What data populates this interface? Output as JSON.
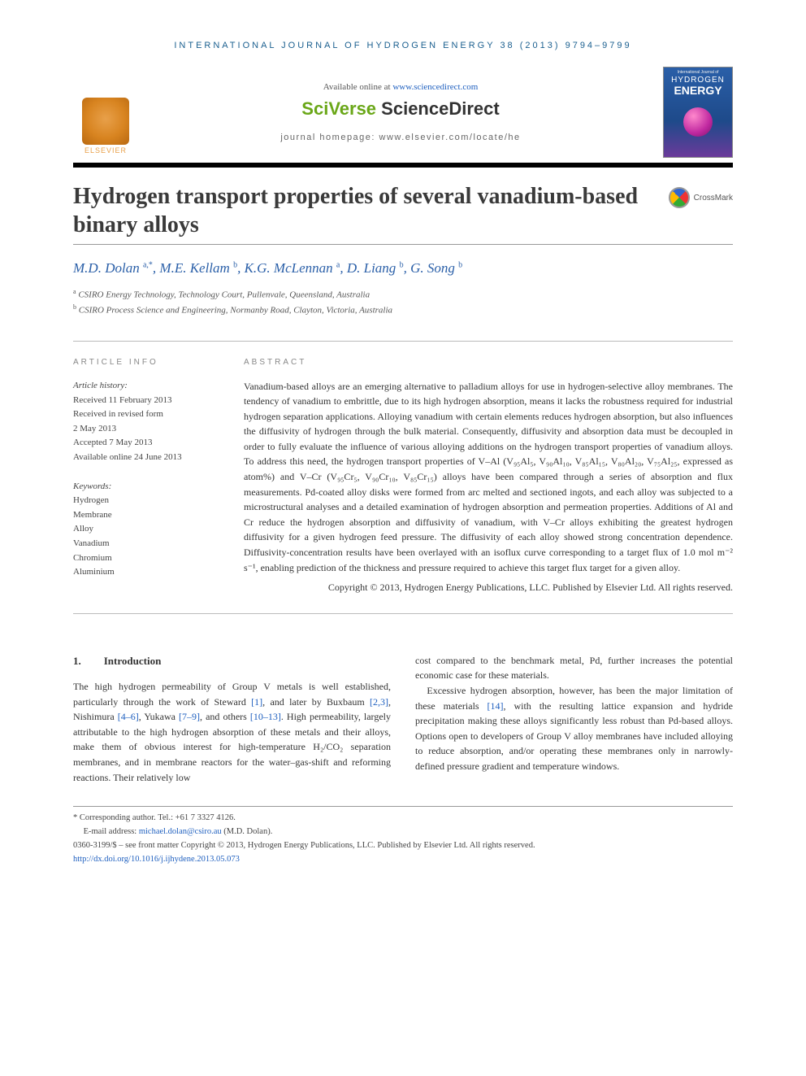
{
  "running_head": "INTERNATIONAL JOURNAL OF HYDROGEN ENERGY 38 (2013) 9794–9799",
  "masthead": {
    "elsevier": "ELSEVIER",
    "available_prefix": "Available online at ",
    "available_url": "www.sciencedirect.com",
    "sciverse_left": "SciVerse ",
    "sciverse_right": "ScienceDirect",
    "homepage": "journal homepage: www.elsevier.com/locate/he",
    "cover_top": "International Journal of",
    "cover_h": "HYDROGEN",
    "cover_e": "ENERGY"
  },
  "crossmark": "CrossMark",
  "title": "Hydrogen transport properties of several vanadium-based binary alloys",
  "authors_html": "M.D. Dolan <sup>a,*</sup>, M.E. Kellam <sup>b</sup>, K.G. McLennan <sup>a</sup>, D. Liang <sup>b</sup>, G. Song <sup>b</sup>",
  "affiliations": [
    {
      "sup": "a",
      "text": "CSIRO Energy Technology, Technology Court, Pullenvale, Queensland, Australia"
    },
    {
      "sup": "b",
      "text": "CSIRO Process Science and Engineering, Normanby Road, Clayton, Victoria, Australia"
    }
  ],
  "info": {
    "head": "ARTICLE INFO",
    "history_head": "Article history:",
    "history": [
      "Received 11 February 2013",
      "Received in revised form",
      "2 May 2013",
      "Accepted 7 May 2013",
      "Available online 24 June 2013"
    ],
    "keywords_head": "Keywords:",
    "keywords": [
      "Hydrogen",
      "Membrane",
      "Alloy",
      "Vanadium",
      "Chromium",
      "Aluminium"
    ]
  },
  "abstract": {
    "head": "ABSTRACT",
    "body": "Vanadium-based alloys are an emerging alternative to palladium alloys for use in hydrogen-selective alloy membranes. The tendency of vanadium to embrittle, due to its high hydrogen absorption, means it lacks the robustness required for industrial hydrogen separation applications. Alloying vanadium with certain elements reduces hydrogen absorption, but also influences the diffusivity of hydrogen through the bulk material. Consequently, diffusivity and absorption data must be decoupled in order to fully evaluate the influence of various alloying additions on the hydrogen transport properties of vanadium alloys. To address this need, the hydrogen transport properties of V–Al (V₉₅Al₅, V₉₀Al₁₀, V₈₅Al₁₅, V₈₀Al₂₀, V₇₅Al₂₅, expressed as atom%) and V–Cr (V₉₅Cr₅, V₉₀Cr₁₀, V₈₅Cr₁₅) alloys have been compared through a series of absorption and flux measurements. Pd-coated alloy disks were formed from arc melted and sectioned ingots, and each alloy was subjected to a microstructural analyses and a detailed examination of hydrogen absorption and permeation properties. Additions of Al and Cr reduce the hydrogen absorption and diffusivity of vanadium, with V–Cr alloys exhibiting the greatest hydrogen diffusivity for a given hydrogen feed pressure. The diffusivity of each alloy showed strong concentration dependence. Diffusivity-concentration results have been overlayed with an isoflux curve corresponding to a target flux of 1.0 mol m⁻² s⁻¹, enabling prediction of the thickness and pressure required to achieve this target flux target for a given alloy.",
    "copyright": "Copyright © 2013, Hydrogen Energy Publications, LLC. Published by Elsevier Ltd. All rights reserved."
  },
  "section1": {
    "num": "1.",
    "title": "Introduction"
  },
  "paras": {
    "p1_a": "The high hydrogen permeability of Group V metals is well established, particularly through the work of Steward ",
    "r1": "[1]",
    "p1_b": ", and later by Buxbaum ",
    "r23": "[2,3]",
    "p1_c": ", Nishimura ",
    "r46": "[4–6]",
    "p1_d": ", Yukawa ",
    "r79": "[7–9]",
    "p1_e": ", and others ",
    "r1013": "[10–13]",
    "p1_f": ". High permeability, largely attributable to the high hydrogen absorption of these metals and their alloys, make them of obvious interest for high-temperature H₂/CO₂ separation membranes, and in membrane reactors for the water–gas-shift and reforming reactions. Their relatively low",
    "p2": "cost compared to the benchmark metal, Pd, further increases the potential economic case for these materials.",
    "p3_a": "Excessive hydrogen absorption, however, has been the major limitation of these materials ",
    "r14": "[14]",
    "p3_b": ", with the resulting lattice expansion and hydride precipitation making these alloys significantly less robust than Pd-based alloys. Options open to developers of Group V alloy membranes have included alloying to reduce absorption, and/or operating these membranes only in narrowly-defined pressure gradient and temperature windows."
  },
  "footnotes": {
    "corr_label": "* Corresponding author.",
    "corr_tel": " Tel.: +61 7 3327 4126.",
    "email_label": "E-mail address: ",
    "email": "michael.dolan@csiro.au",
    "email_suffix": " (M.D. Dolan).",
    "front": "0360-3199/$ – see front matter Copyright © 2013, Hydrogen Energy Publications, LLC. Published by Elsevier Ltd. All rights reserved.",
    "doi": "http://dx.doi.org/10.1016/j.ijhydene.2013.05.073"
  },
  "colors": {
    "link": "#1e5fbf",
    "author": "#2a5fa8",
    "sciverse_green": "#6aa718",
    "running_head": "#1a5f8f"
  }
}
